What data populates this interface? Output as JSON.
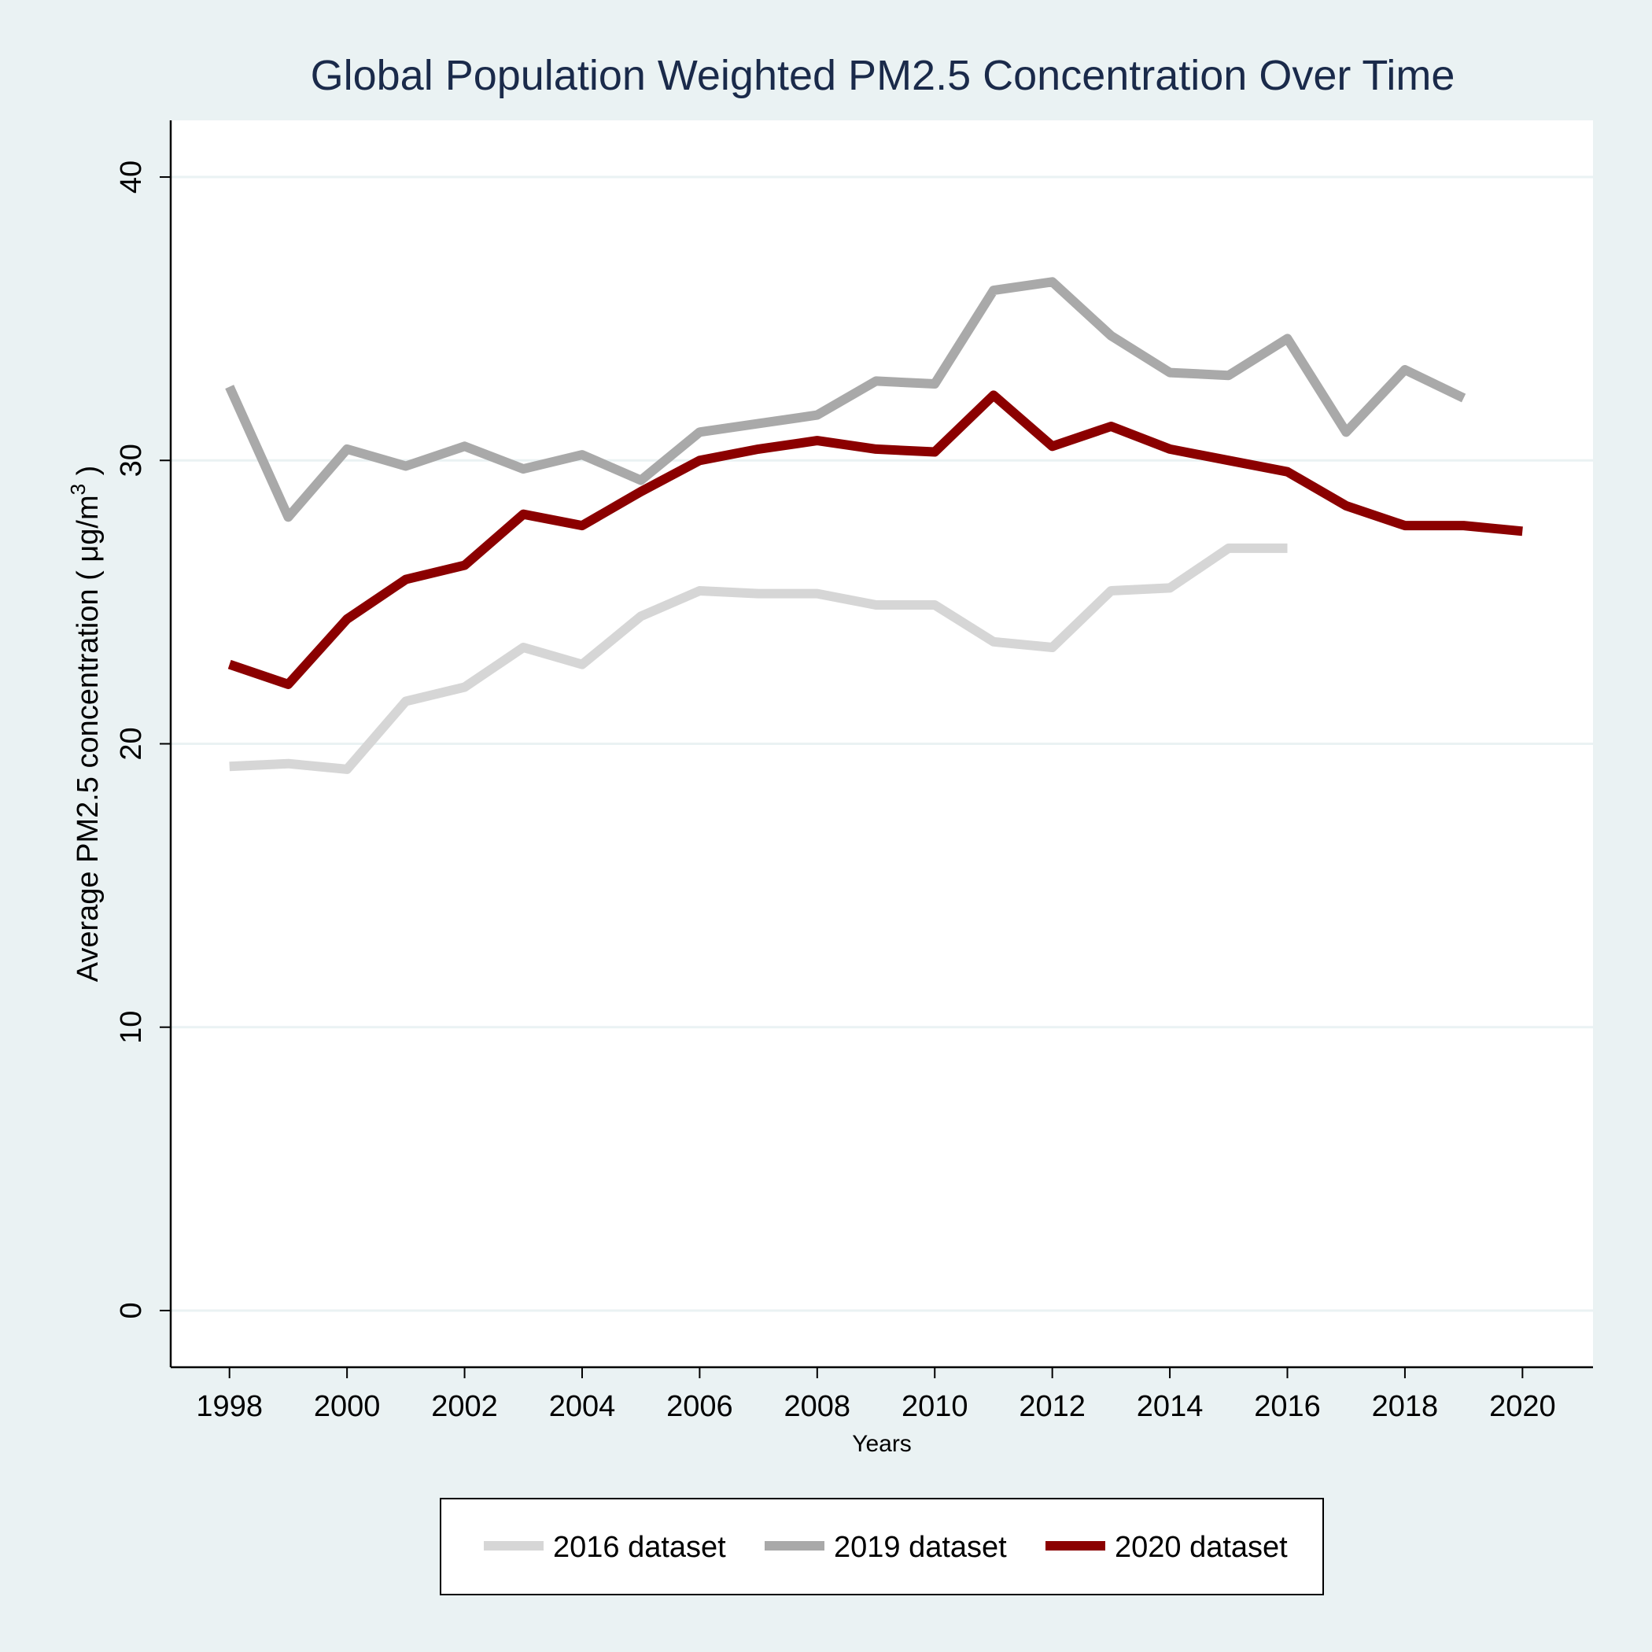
{
  "chart_data": {
    "type": "line",
    "title": "Global Population Weighted PM2.5 Concentration Over Time",
    "xlabel": "Years",
    "ylabel": {
      "prefix": "Average PM2.5 concentration ( μg/m",
      "superscript": "3",
      "suffix": " )"
    },
    "xlim": [
      1997,
      2021.2
    ],
    "ylim": [
      -2,
      42
    ],
    "xticks": [
      "1998",
      "2000",
      "2002",
      "2004",
      "2006",
      "2008",
      "2010",
      "2012",
      "2014",
      "2016",
      "2018",
      "2020"
    ],
    "yticks": [
      "0",
      "10",
      "20",
      "30",
      "40"
    ],
    "grid": true,
    "legend_position": "bottom",
    "series": [
      {
        "name": "2016 dataset",
        "color": "#d6d6d6",
        "x": [
          1998,
          1999,
          2000,
          2001,
          2002,
          2003,
          2004,
          2005,
          2006,
          2007,
          2008,
          2009,
          2010,
          2011,
          2012,
          2013,
          2014,
          2015,
          2016
        ],
        "y": [
          19.2,
          19.3,
          19.1,
          21.5,
          22.0,
          23.4,
          22.8,
          24.5,
          25.4,
          25.3,
          25.3,
          24.9,
          24.9,
          23.6,
          23.4,
          25.4,
          25.5,
          26.9,
          26.9
        ]
      },
      {
        "name": "2019 dataset",
        "color": "#a9a9a9",
        "x": [
          1998,
          1999,
          2000,
          2001,
          2002,
          2003,
          2004,
          2005,
          2006,
          2007,
          2008,
          2009,
          2010,
          2011,
          2012,
          2013,
          2014,
          2015,
          2016,
          2017,
          2018,
          2019
        ],
        "y": [
          32.6,
          28.0,
          30.4,
          29.8,
          30.5,
          29.7,
          30.2,
          29.3,
          31.0,
          31.3,
          31.6,
          32.8,
          32.7,
          36.0,
          36.3,
          34.4,
          33.1,
          33.0,
          34.3,
          31.0,
          33.2,
          32.2
        ]
      },
      {
        "name": "2020 dataset",
        "color": "#8b0000",
        "x": [
          1998,
          1999,
          2000,
          2001,
          2002,
          2003,
          2004,
          2005,
          2006,
          2007,
          2008,
          2009,
          2010,
          2011,
          2012,
          2013,
          2014,
          2015,
          2016,
          2017,
          2018,
          2019,
          2020
        ],
        "y": [
          22.8,
          22.1,
          24.4,
          25.8,
          26.3,
          28.1,
          27.7,
          28.9,
          30.0,
          30.4,
          30.7,
          30.4,
          30.3,
          32.3,
          30.5,
          31.2,
          30.4,
          30.0,
          29.6,
          28.4,
          27.7,
          27.7,
          27.5
        ]
      }
    ]
  }
}
